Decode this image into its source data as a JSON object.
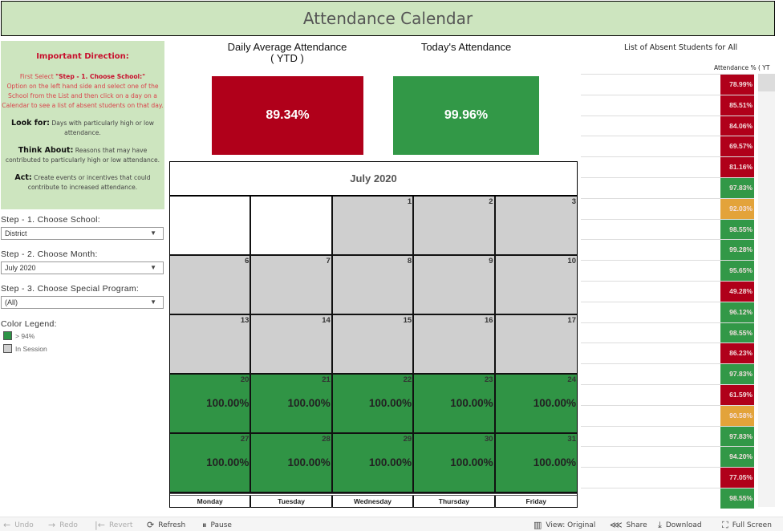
{
  "header": {
    "title": "Attendance Calendar"
  },
  "direction": {
    "heading": "Important Direction:",
    "first_select_prefix": "First Select ",
    "first_select_bold": "\"Step - 1. Choose School:\"",
    "first_select_rest": "Option on the left hand side and select one of the School from the List and then click on a day on a Calendar to see a list of absent students on that day.",
    "look_for_label": "Look for:",
    "look_for_text": "Days with particularly high or low attendance.",
    "think_label": "Think About:",
    "think_text": "Reasons that may have contributed to particularly high or low attendance.",
    "act_label": "Act:",
    "act_text": "Create events or incentives that could contribute to increased attendance."
  },
  "controls": {
    "school": {
      "label": "Step - 1. Choose School:",
      "value": "District"
    },
    "month": {
      "label": "Step - 2. Choose Month:",
      "value": "July 2020"
    },
    "program": {
      "label": "Step - 3. Choose Special Program:",
      "value": "(All)"
    }
  },
  "legend": {
    "title": "Color Legend:",
    "items": [
      {
        "label": "> 94%",
        "color": "#2e9447"
      },
      {
        "label": "In Session",
        "color": "#cfcfcf"
      }
    ]
  },
  "kpis": {
    "ytd": {
      "title": "Daily Average Attendance",
      "subtitle": "( YTD )",
      "value": "89.34%",
      "color": "#b0001a"
    },
    "today": {
      "title": "Today's Attendance",
      "value": "99.96%",
      "color": "#329847"
    }
  },
  "calendar": {
    "month_title": "July 2020",
    "weekdays": [
      "Monday",
      "Tuesday",
      "Wednesday",
      "Thursday",
      "Friday"
    ],
    "cells": [
      {
        "day": "",
        "pct": "",
        "state": "empty"
      },
      {
        "day": "",
        "pct": "",
        "state": "empty"
      },
      {
        "day": "1",
        "pct": "",
        "state": "session"
      },
      {
        "day": "2",
        "pct": "",
        "state": "session"
      },
      {
        "day": "3",
        "pct": "",
        "state": "session"
      },
      {
        "day": "6",
        "pct": "",
        "state": "session"
      },
      {
        "day": "7",
        "pct": "",
        "state": "session"
      },
      {
        "day": "8",
        "pct": "",
        "state": "session"
      },
      {
        "day": "9",
        "pct": "",
        "state": "session"
      },
      {
        "day": "10",
        "pct": "",
        "state": "session"
      },
      {
        "day": "13",
        "pct": "",
        "state": "session"
      },
      {
        "day": "14",
        "pct": "",
        "state": "session"
      },
      {
        "day": "15",
        "pct": "",
        "state": "session"
      },
      {
        "day": "16",
        "pct": "",
        "state": "session"
      },
      {
        "day": "17",
        "pct": "",
        "state": "session"
      },
      {
        "day": "20",
        "pct": "100.00%",
        "state": "high"
      },
      {
        "day": "21",
        "pct": "100.00%",
        "state": "high"
      },
      {
        "day": "22",
        "pct": "100.00%",
        "state": "high"
      },
      {
        "day": "23",
        "pct": "100.00%",
        "state": "high"
      },
      {
        "day": "24",
        "pct": "100.00%",
        "state": "high"
      },
      {
        "day": "27",
        "pct": "100.00%",
        "state": "high"
      },
      {
        "day": "28",
        "pct": "100.00%",
        "state": "high"
      },
      {
        "day": "29",
        "pct": "100.00%",
        "state": "high"
      },
      {
        "day": "30",
        "pct": "100.00%",
        "state": "high"
      },
      {
        "day": "31",
        "pct": "100.00%",
        "state": "high"
      }
    ]
  },
  "absent_list": {
    "title": "List of Absent Students for All",
    "column_header": "Attendance % ( YT",
    "rows": [
      {
        "value": "78.99%",
        "level": "red"
      },
      {
        "value": "85.51%",
        "level": "red"
      },
      {
        "value": "84.06%",
        "level": "red"
      },
      {
        "value": "69.57%",
        "level": "red"
      },
      {
        "value": "81.16%",
        "level": "red"
      },
      {
        "value": "97.83%",
        "level": "green"
      },
      {
        "value": "92.03%",
        "level": "orange"
      },
      {
        "value": "98.55%",
        "level": "green"
      },
      {
        "value": "99.28%",
        "level": "green"
      },
      {
        "value": "95.65%",
        "level": "green"
      },
      {
        "value": "49.28%",
        "level": "red"
      },
      {
        "value": "96.12%",
        "level": "green"
      },
      {
        "value": "98.55%",
        "level": "green"
      },
      {
        "value": "86.23%",
        "level": "red"
      },
      {
        "value": "97.83%",
        "level": "green"
      },
      {
        "value": "61.59%",
        "level": "red"
      },
      {
        "value": "90.58%",
        "level": "orange"
      },
      {
        "value": "97.83%",
        "level": "green"
      },
      {
        "value": "94.20%",
        "level": "green"
      },
      {
        "value": "77.05%",
        "level": "red"
      },
      {
        "value": "98.55%",
        "level": "green"
      }
    ]
  },
  "colors": {
    "red": "#b0001a",
    "green": "#329847",
    "orange": "#e3a33a",
    "session": "#cfcfcf",
    "high": "#309445"
  },
  "toolbar": {
    "undo": "Undo",
    "redo": "Redo",
    "revert": "Revert",
    "refresh": "Refresh",
    "pause": "Pause",
    "view": "View: Original",
    "share": "Share",
    "download": "Download",
    "fullscreen": "Full Screen"
  }
}
